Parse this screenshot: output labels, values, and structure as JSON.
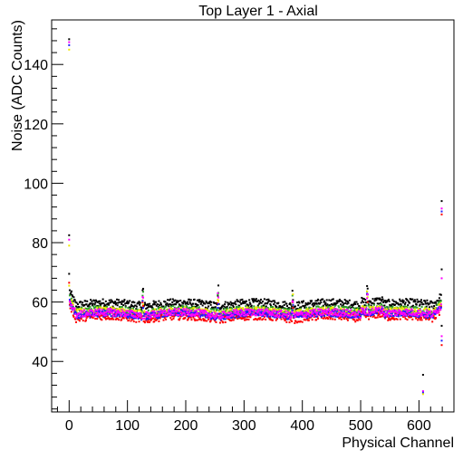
{
  "chart_data": {
    "type": "scatter",
    "title": "Top Layer 1 - Axial",
    "xlabel": "Physical Channel",
    "ylabel": "Noise (ADC Counts)",
    "xlim": [
      -30,
      660
    ],
    "ylim": [
      23,
      155
    ],
    "x_ticks": [
      0,
      100,
      200,
      300,
      400,
      500,
      600
    ],
    "y_ticks": [
      40,
      60,
      80,
      100,
      120,
      140
    ],
    "grid": false,
    "channels": 640,
    "series": [
      {
        "name": "black",
        "color": "#000000",
        "baseline": 59.2,
        "spread": 1.3
      },
      {
        "name": "green",
        "color": "#2ca02c",
        "baseline": 57.0,
        "spread": 1.2
      },
      {
        "name": "yellow",
        "color": "#f2e600",
        "baseline": 56.5,
        "spread": 1.2
      },
      {
        "name": "red",
        "color": "#ff0000",
        "baseline": 54.6,
        "spread": 1.2
      },
      {
        "name": "blue",
        "color": "#1f1fff",
        "baseline": 55.6,
        "spread": 1.1
      },
      {
        "name": "magenta",
        "color": "#ff00ff",
        "baseline": 56.0,
        "spread": 1.2
      }
    ],
    "outliers": [
      {
        "x": 0,
        "y": 148.5,
        "color": "#000000"
      },
      {
        "x": 0,
        "y": 147.5,
        "color": "#ff00ff"
      },
      {
        "x": 0,
        "y": 146.5,
        "color": "#1f1fff"
      },
      {
        "x": 0,
        "y": 145.0,
        "color": "#f2e600"
      },
      {
        "x": 0,
        "y": 82.5,
        "color": "#000000"
      },
      {
        "x": 0,
        "y": 81.0,
        "color": "#ff00ff"
      },
      {
        "x": 0,
        "y": 79.0,
        "color": "#f2e600"
      },
      {
        "x": 0,
        "y": 69.5,
        "color": "#000000"
      },
      {
        "x": 0,
        "y": 66.5,
        "color": "#ff0000"
      },
      {
        "x": 0,
        "y": 65.5,
        "color": "#f2e600"
      },
      {
        "x": 607,
        "y": 35.5,
        "color": "#000000"
      },
      {
        "x": 607,
        "y": 30.0,
        "color": "#ff00ff"
      },
      {
        "x": 607,
        "y": 29.5,
        "color": "#1f1fff"
      },
      {
        "x": 607,
        "y": 29.0,
        "color": "#f2e600"
      },
      {
        "x": 639,
        "y": 94.0,
        "color": "#000000"
      },
      {
        "x": 639,
        "y": 91.5,
        "color": "#ff00ff"
      },
      {
        "x": 639,
        "y": 90.5,
        "color": "#1f1fff"
      },
      {
        "x": 639,
        "y": 89.5,
        "color": "#ff0000"
      },
      {
        "x": 639,
        "y": 71.0,
        "color": "#000000"
      },
      {
        "x": 639,
        "y": 68.0,
        "color": "#ff00ff"
      },
      {
        "x": 639,
        "y": 52.0,
        "color": "#000000"
      },
      {
        "x": 639,
        "y": 48.5,
        "color": "#ff00ff"
      },
      {
        "x": 639,
        "y": 47.0,
        "color": "#1f1fff"
      },
      {
        "x": 639,
        "y": 45.5,
        "color": "#ff0000"
      }
    ]
  }
}
